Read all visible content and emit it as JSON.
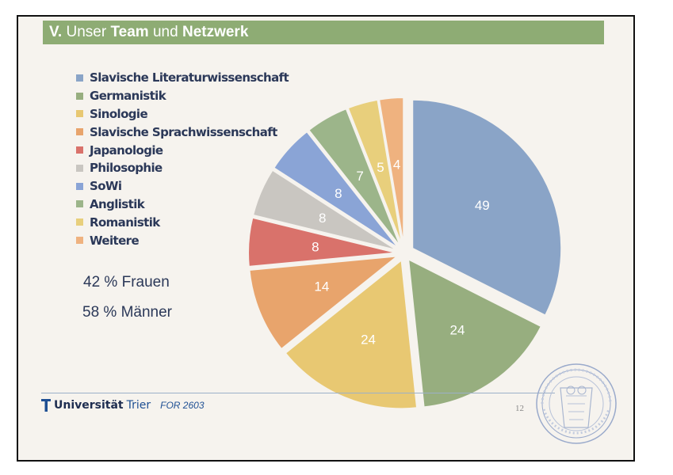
{
  "slide": {
    "title_prefix": "V.",
    "title_part1": " Unser ",
    "title_bold1": "Team",
    "title_part2": " und ",
    "title_bold2": "Netzwerk",
    "stats": [
      "42 % Frauen",
      "58 % Männer"
    ],
    "footer": {
      "logo_bold": "Universität",
      "logo_rest": "Trier",
      "project": "FOR 2603",
      "page_number": "12"
    },
    "seal_icon": "university-seal-icon"
  },
  "chart_data": {
    "type": "pie",
    "title": "",
    "categories": [
      "Slavische Literaturwissenschaft",
      "Germanistik",
      "Sinologie",
      "Slavische Sprachwissenschaft",
      "Japanologie",
      "Philosophie",
      "SoWi",
      "Anglistik",
      "Romanistik",
      "Weitere"
    ],
    "values": [
      49,
      24,
      24,
      14,
      8,
      8,
      8,
      7,
      5,
      4
    ],
    "colors": [
      "#8aa4c7",
      "#97ae7f",
      "#e8c872",
      "#e8a46c",
      "#d9726b",
      "#c9c6c1",
      "#8aa4d6",
      "#9cb58a",
      "#e8cf7c",
      "#efb27f"
    ],
    "legend_position": "left",
    "data_labels": true,
    "exploded": true
  }
}
